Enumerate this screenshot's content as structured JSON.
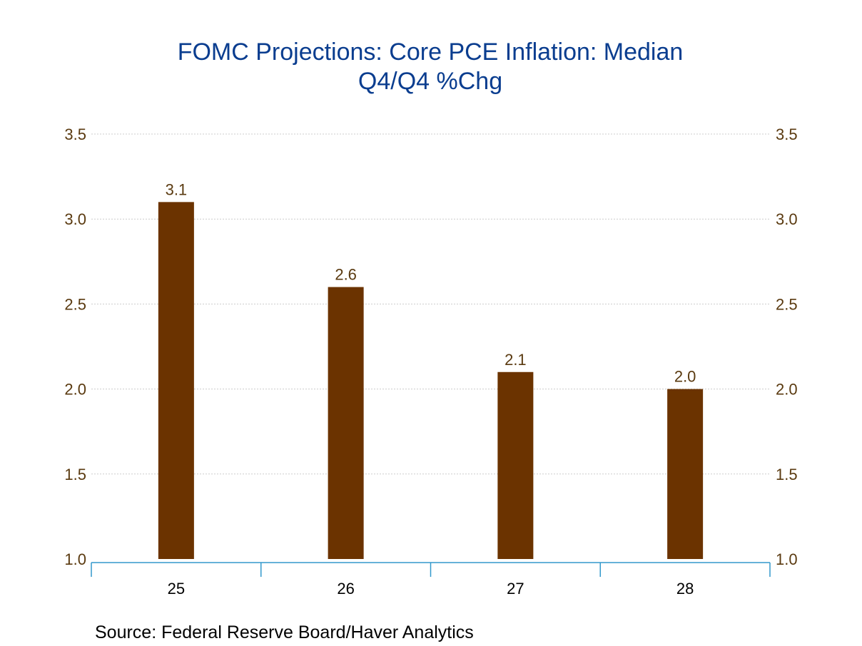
{
  "chart_data": {
    "type": "bar",
    "title_line1": "FOMC Projections: Core PCE Inflation: Median",
    "title_line2": "Q4/Q4 %Chg",
    "categories": [
      "25",
      "26",
      "27",
      "28"
    ],
    "values": [
      3.1,
      2.6,
      2.1,
      2.0
    ],
    "value_labels": [
      "3.1",
      "2.6",
      "2.1",
      "2.0"
    ],
    "ylim": [
      1.0,
      3.5
    ],
    "y_ticks": [
      "1.0",
      "1.5",
      "2.0",
      "2.5",
      "3.0",
      "3.5"
    ],
    "y_tick_values": [
      1.0,
      1.5,
      2.0,
      2.5,
      3.0,
      3.5
    ],
    "grid": true,
    "dual_y_axis": true,
    "xlabel": "",
    "ylabel": "",
    "source": "Source:  Federal Reserve Board/Haver Analytics"
  },
  "colors": {
    "bar": "#6b3300",
    "title": "#0a3d8f",
    "tick_text": "#5a3a10",
    "bar_label_text": "#5a3a10",
    "axis_line": "#3399cc",
    "grid": "#cccccc"
  }
}
